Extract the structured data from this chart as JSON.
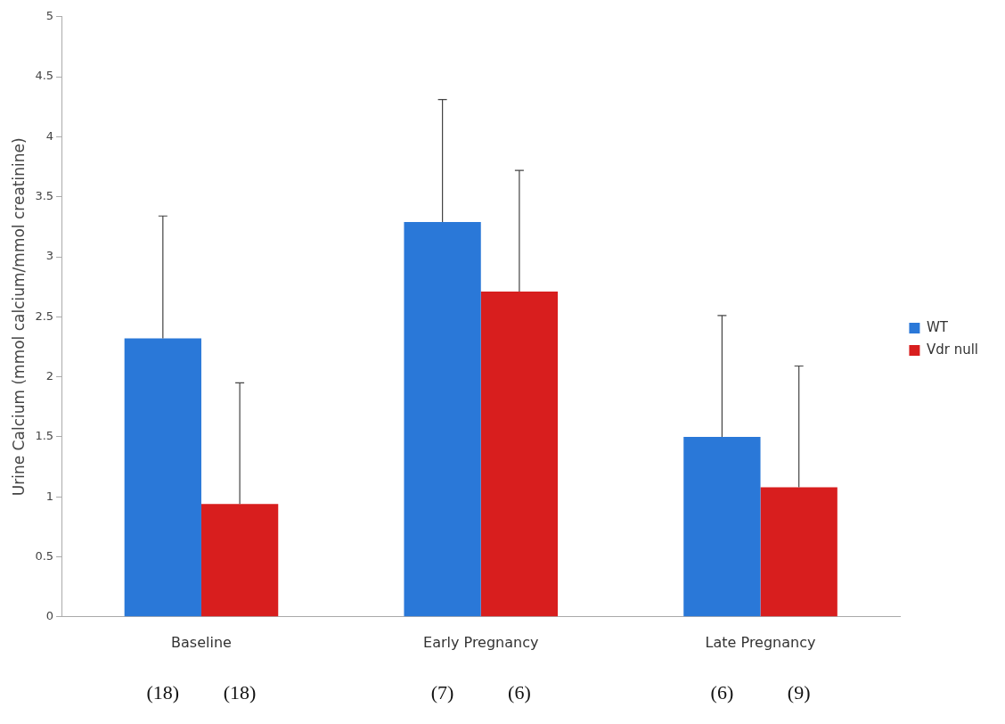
{
  "chart_data": {
    "type": "bar",
    "ylabel": "Urine Calcium (mmol calcium/mmol creatinine)",
    "categories": [
      "Baseline",
      "Early Pregnancy",
      "Late Pregnancy"
    ],
    "series": [
      {
        "name": "WT",
        "color": "#2a78d8",
        "values": [
          2.32,
          3.29,
          1.5
        ],
        "errors": [
          [
            2.32,
            3.34
          ],
          [
            3.29,
            4.31
          ],
          [
            1.5,
            2.51
          ]
        ]
      },
      {
        "name": "Vdr null",
        "color": "#d81e1e",
        "values": [
          0.94,
          2.71,
          1.08
        ],
        "errors": [
          [
            0.94,
            1.95
          ],
          [
            2.71,
            3.72
          ],
          [
            1.08,
            2.09
          ]
        ]
      }
    ],
    "ylim": [
      0,
      5
    ],
    "yticks": [
      0,
      0.5,
      1,
      1.5,
      2,
      2.5,
      3,
      3.5,
      4,
      4.5,
      5
    ],
    "legend": "right",
    "grid": false,
    "annotations": [
      "(18)",
      "(18)",
      "(7)",
      "(6)",
      "(6)",
      "(9)"
    ]
  }
}
